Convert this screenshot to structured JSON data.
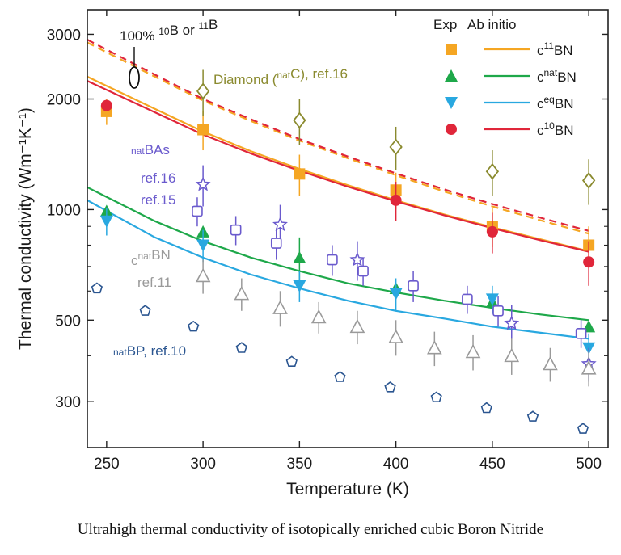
{
  "caption": "Ultrahigh thermal conductivity of isotopically enriched cubic Boron Nitride",
  "chart_data": {
    "type": "scatter",
    "title": "",
    "xlabel": "Temperature (K)",
    "ylabel": "Thermal conductivity (Wm⁻¹K⁻¹)",
    "y_scale": "log",
    "xlim": [
      240,
      510
    ],
    "ylim": [
      225,
      3500
    ],
    "x_ticks": [
      250,
      300,
      350,
      400,
      450,
      500
    ],
    "x_tick_labels": [
      "250",
      "300",
      "350",
      "400",
      "450",
      "500"
    ],
    "y_ticks": [
      300,
      500,
      1000,
      2000,
      3000
    ],
    "y_tick_labels": [
      "300",
      "500",
      "1000",
      "2000",
      "3000"
    ],
    "legend": {
      "header_exp": "Exp",
      "header_abinitio": "Ab initio",
      "entries": [
        {
          "base": "c",
          "sup": "11",
          "tail": "BN",
          "color": "#F5A623",
          "marker": "square"
        },
        {
          "base": "c",
          "sup": "nat",
          "tail": "BN",
          "color": "#1EA84A",
          "marker": "triangle-up"
        },
        {
          "base": "c",
          "sup": "eq",
          "tail": "BN",
          "color": "#29A8E0",
          "marker": "triangle-down"
        },
        {
          "base": "c",
          "sup": "10",
          "tail": "BN",
          "color": "#E0263A",
          "marker": "circle"
        }
      ]
    },
    "annotations": {
      "enriched": {
        "parts": [
          {
            "t": "100% "
          },
          {
            "t": "10",
            "sup": true
          },
          {
            "t": "B or "
          },
          {
            "t": "11",
            "sup": true
          },
          {
            "t": "B"
          }
        ],
        "color": "#1a1a1a"
      },
      "diamond": {
        "parts": [
          {
            "t": "Diamond ("
          },
          {
            "t": "nat",
            "sup": true
          },
          {
            "t": "C), ref.16"
          }
        ],
        "color": "#8A8A2E"
      },
      "bas_1": {
        "parts": [
          {
            "t": "nat",
            "sup": true
          },
          {
            "t": "BAs"
          }
        ],
        "color": "#6A5ACD"
      },
      "bas_2": {
        "parts": [
          {
            "t": "ref.16"
          }
        ],
        "color": "#6A5ACD"
      },
      "bas_3": {
        "parts": [
          {
            "t": "ref.15"
          }
        ],
        "color": "#6A5ACD"
      },
      "cbn_1": {
        "parts": [
          {
            "t": "c"
          },
          {
            "t": "nat",
            "sup": true
          },
          {
            "t": "BN"
          }
        ],
        "color": "#9A9A9A"
      },
      "cbn_2": {
        "parts": [
          {
            "t": "ref.11"
          }
        ],
        "color": "#9A9A9A"
      },
      "bp": {
        "parts": [
          {
            "t": "nat",
            "sup": true
          },
          {
            "t": "BP, ref.10"
          }
        ],
        "color": "#2A5590"
      }
    },
    "series": [
      {
        "name": "c11BN exp",
        "color": "#F5A623",
        "marker": "square",
        "points": [
          {
            "x": 250,
            "y": 1850,
            "e": 150
          },
          {
            "x": 300,
            "y": 1650,
            "e": 200
          },
          {
            "x": 350,
            "y": 1250,
            "e": 160
          },
          {
            "x": 400,
            "y": 1130,
            "e": 130
          },
          {
            "x": 450,
            "y": 900,
            "e": 110
          },
          {
            "x": 500,
            "y": 800,
            "e": 100
          }
        ]
      },
      {
        "name": "c10BN exp",
        "color": "#E0263A",
        "marker": "circle",
        "points": [
          {
            "x": 250,
            "y": 1920,
            "e": 0
          },
          {
            "x": 400,
            "y": 1060,
            "e": 130
          },
          {
            "x": 450,
            "y": 870,
            "e": 110
          },
          {
            "x": 500,
            "y": 720,
            "e": 100
          }
        ]
      },
      {
        "name": "cnatBN exp",
        "color": "#1EA84A",
        "marker": "triangle-up",
        "points": [
          {
            "x": 250,
            "y": 990,
            "e": 0
          },
          {
            "x": 300,
            "y": 870,
            "e": 0
          },
          {
            "x": 350,
            "y": 740,
            "e": 100
          },
          {
            "x": 400,
            "y": 610,
            "e": 0
          },
          {
            "x": 450,
            "y": 560,
            "e": 0
          },
          {
            "x": 500,
            "y": 480,
            "e": 0
          }
        ]
      },
      {
        "name": "ceqBN exp",
        "color": "#29A8E0",
        "marker": "triangle-down",
        "points": [
          {
            "x": 250,
            "y": 930,
            "e": 80
          },
          {
            "x": 300,
            "y": 800,
            "e": 80
          },
          {
            "x": 350,
            "y": 620,
            "e": 60
          },
          {
            "x": 400,
            "y": 590,
            "e": 60
          },
          {
            "x": 450,
            "y": 570,
            "e": 50
          },
          {
            "x": 500,
            "y": 420,
            "e": 40
          }
        ]
      },
      {
        "name": "Diamond natC ref.16",
        "color": "#8A8A2E",
        "marker": "diamond",
        "points": [
          {
            "x": 300,
            "y": 2100,
            "e": 300
          },
          {
            "x": 350,
            "y": 1750,
            "e": 250
          },
          {
            "x": 400,
            "y": 1480,
            "e": 200
          },
          {
            "x": 450,
            "y": 1270,
            "e": 180
          },
          {
            "x": 500,
            "y": 1200,
            "e": 170
          }
        ]
      },
      {
        "name": "natBAs ref.16",
        "color": "#6A5ACD",
        "marker": "star",
        "points": [
          {
            "x": 300,
            "y": 1170,
            "e": 150
          },
          {
            "x": 340,
            "y": 910,
            "e": 120
          },
          {
            "x": 380,
            "y": 730,
            "e": 90
          },
          {
            "x": 460,
            "y": 490,
            "e": 60
          },
          {
            "x": 500,
            "y": 380,
            "e": 40
          }
        ]
      },
      {
        "name": "natBAs ref.15",
        "color": "#6A5ACD",
        "marker": "square-open",
        "points": [
          {
            "x": 297,
            "y": 990,
            "e": 90
          },
          {
            "x": 317,
            "y": 880,
            "e": 80
          },
          {
            "x": 338,
            "y": 810,
            "e": 80
          },
          {
            "x": 367,
            "y": 730,
            "e": 70
          },
          {
            "x": 383,
            "y": 680,
            "e": 60
          },
          {
            "x": 409,
            "y": 620,
            "e": 60
          },
          {
            "x": 437,
            "y": 570,
            "e": 50
          },
          {
            "x": 453,
            "y": 530,
            "e": 50
          },
          {
            "x": 496,
            "y": 460,
            "e": 40
          }
        ]
      },
      {
        "name": "cnatBN ref.11",
        "color": "#9A9A9A",
        "marker": "triangle-open",
        "points": [
          {
            "x": 300,
            "y": 660,
            "e": 70
          },
          {
            "x": 320,
            "y": 590,
            "e": 60
          },
          {
            "x": 340,
            "y": 540,
            "e": 60
          },
          {
            "x": 360,
            "y": 510,
            "e": 50
          },
          {
            "x": 380,
            "y": 480,
            "e": 50
          },
          {
            "x": 400,
            "y": 450,
            "e": 50
          },
          {
            "x": 420,
            "y": 420,
            "e": 45
          },
          {
            "x": 440,
            "y": 410,
            "e": 45
          },
          {
            "x": 460,
            "y": 400,
            "e": 45
          },
          {
            "x": 480,
            "y": 380,
            "e": 40
          },
          {
            "x": 500,
            "y": 370,
            "e": 40
          }
        ]
      },
      {
        "name": "natBP ref.10",
        "color": "#2A5590",
        "marker": "pentagon",
        "points": [
          {
            "x": 245,
            "y": 610
          },
          {
            "x": 270,
            "y": 530
          },
          {
            "x": 295,
            "y": 480
          },
          {
            "x": 320,
            "y": 420
          },
          {
            "x": 346,
            "y": 385
          },
          {
            "x": 371,
            "y": 350
          },
          {
            "x": 397,
            "y": 328
          },
          {
            "x": 421,
            "y": 308
          },
          {
            "x": 447,
            "y": 288
          },
          {
            "x": 471,
            "y": 273
          },
          {
            "x": 497,
            "y": 253
          }
        ]
      }
    ],
    "lines": [
      {
        "name": "c11BN ab initio",
        "color": "#F5A623",
        "dash": false,
        "x": [
          240,
          275,
          300,
          325,
          350,
          375,
          400,
          425,
          450,
          475,
          500
        ],
        "y": [
          2300,
          1880,
          1630,
          1440,
          1290,
          1165,
          1060,
          970,
          895,
          830,
          770
        ]
      },
      {
        "name": "c10BN ab initio",
        "color": "#E0263A",
        "dash": false,
        "x": [
          240,
          275,
          300,
          325,
          350,
          375,
          400,
          425,
          450,
          475,
          500
        ],
        "y": [
          2240,
          1840,
          1600,
          1420,
          1275,
          1155,
          1053,
          965,
          890,
          825,
          768
        ]
      },
      {
        "name": "cnatBN ab initio",
        "color": "#1EA84A",
        "dash": false,
        "x": [
          240,
          275,
          300,
          325,
          350,
          375,
          400,
          425,
          450,
          475,
          500
        ],
        "y": [
          1150,
          930,
          820,
          740,
          680,
          630,
          595,
          565,
          540,
          518,
          500
        ]
      },
      {
        "name": "ceqBN ab initio",
        "color": "#29A8E0",
        "dash": false,
        "x": [
          240,
          275,
          300,
          325,
          350,
          375,
          400,
          425,
          450,
          475,
          500
        ],
        "y": [
          1060,
          840,
          740,
          665,
          610,
          565,
          530,
          505,
          480,
          462,
          445
        ]
      },
      {
        "name": "c11BN 100% ab initio",
        "color": "#F5A623",
        "dash": true,
        "x": [
          240,
          275,
          300,
          325,
          350,
          375,
          400,
          425,
          450,
          475,
          500
        ],
        "y": [
          2850,
          2300,
          1980,
          1740,
          1540,
          1380,
          1240,
          1120,
          1020,
          935,
          860
        ]
      },
      {
        "name": "c10BN 100% ab initio",
        "color": "#E0263A",
        "dash": true,
        "x": [
          240,
          275,
          300,
          325,
          350,
          375,
          400,
          425,
          450,
          475,
          500
        ],
        "y": [
          2900,
          2330,
          2000,
          1760,
          1555,
          1395,
          1255,
          1135,
          1035,
          950,
          875
        ]
      }
    ]
  }
}
